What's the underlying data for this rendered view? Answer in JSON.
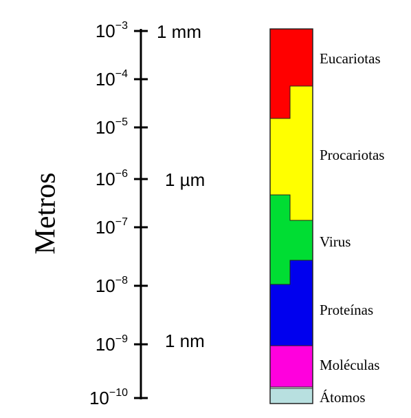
{
  "axis_label": "Metros",
  "ticks": [
    {
      "base": "10",
      "exponent": "−3"
    },
    {
      "base": "10",
      "exponent": "−4"
    },
    {
      "base": "10",
      "exponent": "−5"
    },
    {
      "base": "10",
      "exponent": "−6"
    },
    {
      "base": "10",
      "exponent": "−7"
    },
    {
      "base": "10",
      "exponent": "−8"
    },
    {
      "base": "10",
      "exponent": "−9"
    },
    {
      "base": "10",
      "exponent": "−10"
    }
  ],
  "unit_labels": [
    "1 mm",
    "1 µm",
    "1 nm"
  ],
  "groups": [
    {
      "label": "Eucariotas",
      "color": "#ff0000"
    },
    {
      "label": "Procariotas",
      "color": "#ffff00"
    },
    {
      "label": "Virus",
      "color": "#00dd33"
    },
    {
      "label": "Proteínas",
      "color": "#0000ee"
    },
    {
      "label": "Moléculas",
      "color": "#ff00dd"
    },
    {
      "label": "Átomos",
      "color": "#b8e0e0"
    }
  ]
}
